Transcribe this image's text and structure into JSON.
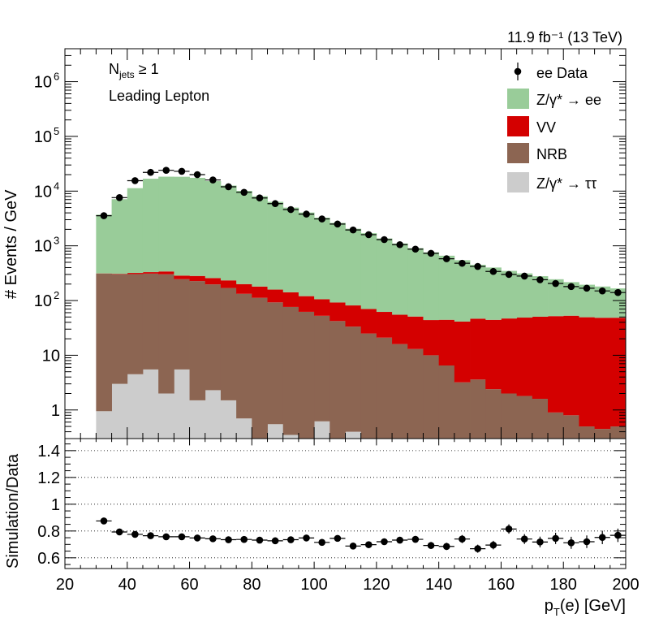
{
  "chart_data": {
    "type": "bar",
    "lumi_label": "11.9 fb⁻¹ (13 TeV)",
    "annotations": [
      "N",
      "jets",
      "≥ 1",
      "Leading Lepton"
    ],
    "xlabel": "p",
    "xlabel_sub": "T",
    "xlabel_tail": "(e) [GeV]",
    "xlim": [
      20,
      200
    ],
    "x_ticks": [
      "20",
      "40",
      "60",
      "80",
      "100",
      "120",
      "140",
      "160",
      "180",
      "200"
    ],
    "top_panel": {
      "ylabel": "# Events / GeV",
      "yscale": "log",
      "ylim": [
        0.3,
        4000000
      ],
      "y_ticks": [
        {
          "base": "1",
          "exp": "",
          "value": 1
        },
        {
          "base": "10",
          "exp": "",
          "value": 10
        },
        {
          "base": "10",
          "exp": "2",
          "value": 100
        },
        {
          "base": "10",
          "exp": "3",
          "value": 1000
        },
        {
          "base": "10",
          "exp": "4",
          "value": 10000
        },
        {
          "base": "10",
          "exp": "5",
          "value": 100000
        },
        {
          "base": "10",
          "exp": "6",
          "value": 1000000
        }
      ],
      "bin_edges": [
        30,
        35,
        40,
        45,
        50,
        55,
        60,
        65,
        70,
        75,
        80,
        85,
        90,
        95,
        100,
        105,
        110,
        115,
        120,
        125,
        130,
        135,
        140,
        145,
        150,
        155,
        160,
        165,
        170,
        175,
        180,
        185,
        190,
        195,
        200
      ],
      "stack_order": [
        "tautau",
        "nrb",
        "vv",
        "zee"
      ],
      "series": [
        {
          "key": "tautau",
          "name": "Z/γ* → ττ",
          "color": "#cccccc",
          "values": [
            0.95,
            3.0,
            4.5,
            5.5,
            2.0,
            5.5,
            1.5,
            2.3,
            1.5,
            0.7,
            0.25,
            0.55,
            0.35,
            0.2,
            0.62,
            0.15,
            0.4,
            0,
            0,
            0,
            0,
            0,
            0,
            0,
            0,
            0,
            0,
            0,
            0,
            0,
            0,
            0,
            0,
            0
          ]
        },
        {
          "key": "nrb",
          "name": "NRB",
          "color": "#8c6552",
          "values": [
            310,
            300,
            300,
            305,
            300,
            240,
            225,
            195,
            168,
            132,
            112,
            92,
            76,
            62,
            52,
            42,
            33,
            25,
            21,
            16,
            13,
            10,
            6.5,
            3.2,
            3.6,
            2.4,
            2.0,
            1.8,
            1.6,
            0.9,
            0.8,
            0.5,
            0.45,
            0.5
          ]
        },
        {
          "key": "vv",
          "name": "VV",
          "color": "#d40000",
          "values": [
            2,
            5,
            15,
            20,
            38,
            40,
            55,
            60,
            64,
            67,
            68,
            66,
            65,
            58,
            53,
            50,
            48,
            45,
            41,
            39,
            38,
            34,
            38,
            38,
            43,
            42,
            45,
            47,
            49,
            51,
            52,
            49,
            48,
            48
          ]
        },
        {
          "key": "zee",
          "name": "Z/γ* → ee",
          "color": "#99cc99",
          "values": [
            3400,
            6800,
            11000,
            16500,
            18000,
            18000,
            17200,
            15000,
            12400,
            9900,
            7880,
            6210,
            4850,
            3940,
            3170,
            2530,
            1970,
            1630,
            1300,
            1050,
            855,
            715,
            615,
            505,
            403,
            357,
            301,
            264,
            228,
            193,
            164,
            145,
            132,
            118
          ]
        }
      ],
      "data": {
        "name": "ee Data",
        "x": [
          32.5,
          37.5,
          42.5,
          47.5,
          52.5,
          57.5,
          62.5,
          67.5,
          72.5,
          77.5,
          82.5,
          87.5,
          92.5,
          97.5,
          102.5,
          107.5,
          112.5,
          117.5,
          122.5,
          127.5,
          132.5,
          137.5,
          142.5,
          147.5,
          152.5,
          157.5,
          162.5,
          167.5,
          172.5,
          177.5,
          182.5,
          187.5,
          192.5,
          197.5
        ],
        "y": [
          3550,
          7600,
          15500,
          22000,
          24000,
          23000,
          20000,
          16000,
          12000,
          9500,
          7500,
          5900,
          4600,
          3800,
          3100,
          2500,
          1950,
          1600,
          1300,
          1050,
          870,
          730,
          580,
          480,
          420,
          340,
          300,
          280,
          240,
          205,
          180,
          168,
          150,
          140
        ]
      }
    },
    "ratio_panel": {
      "ylabel": "Simulation/Data",
      "ylim": [
        0.52,
        1.49
      ],
      "y_ticks": [
        "0.6",
        "0.8",
        "1",
        "1.2",
        "1.4"
      ],
      "y_tick_values": [
        0.6,
        0.8,
        1.0,
        1.2,
        1.4
      ],
      "gridlines": [
        0.6,
        0.8,
        1.0,
        1.2,
        1.4
      ],
      "x": [
        32.5,
        37.5,
        42.5,
        47.5,
        52.5,
        57.5,
        62.5,
        67.5,
        72.5,
        77.5,
        82.5,
        87.5,
        92.5,
        97.5,
        102.5,
        107.5,
        112.5,
        117.5,
        122.5,
        127.5,
        132.5,
        137.5,
        142.5,
        147.5,
        152.5,
        157.5,
        162.5,
        167.5,
        172.5,
        177.5,
        182.5,
        187.5,
        192.5,
        197.5
      ],
      "y": [
        0.875,
        0.793,
        0.775,
        0.765,
        0.757,
        0.757,
        0.748,
        0.742,
        0.735,
        0.737,
        0.732,
        0.727,
        0.735,
        0.748,
        0.715,
        0.745,
        0.688,
        0.698,
        0.72,
        0.732,
        0.738,
        0.692,
        0.685,
        0.74,
        0.668,
        0.695,
        0.815,
        0.74,
        0.718,
        0.745,
        0.712,
        0.72,
        0.752,
        0.768
      ],
      "err": [
        0.012,
        0.01,
        0.01,
        0.008,
        0.008,
        0.008,
        0.008,
        0.008,
        0.009,
        0.01,
        0.01,
        0.01,
        0.011,
        0.012,
        0.014,
        0.015,
        0.016,
        0.018,
        0.02,
        0.022,
        0.025,
        0.026,
        0.027,
        0.03,
        0.03,
        0.032,
        0.035,
        0.037,
        0.04,
        0.042,
        0.045,
        0.047,
        0.05,
        0.05
      ]
    },
    "legend": [
      {
        "key": "data",
        "label": "ee Data"
      },
      {
        "key": "zee",
        "label": "Z/γ* → ee"
      },
      {
        "key": "vv",
        "label": "VV"
      },
      {
        "key": "nrb",
        "label": "NRB"
      },
      {
        "key": "tautau",
        "label": "Z/γ* → ττ"
      }
    ],
    "legend_position": "top-right",
    "grid": "ratio panel only"
  }
}
